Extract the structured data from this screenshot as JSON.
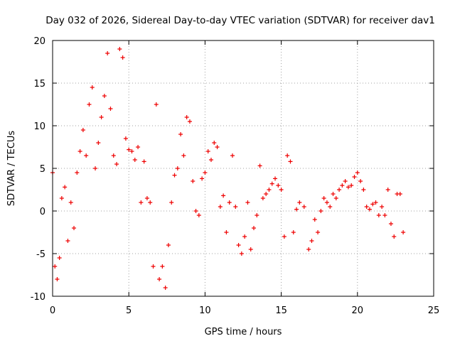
{
  "chart_data": {
    "type": "scatter",
    "title": "Day 032 of 2026, Sidereal Day-to-day VTEC variation (SDTVAR) for receiver dav1",
    "xlabel": "GPS time / hours",
    "ylabel": "SDTVAR / TECUs",
    "xlim": [
      0,
      25
    ],
    "ylim": [
      -10,
      20
    ],
    "x_ticks": [
      0,
      5,
      10,
      15,
      20,
      25
    ],
    "x_tick_labels": [
      "0",
      "5",
      "10",
      "15",
      "20",
      "25"
    ],
    "y_ticks": [
      -10,
      -5,
      0,
      5,
      10,
      15,
      20
    ],
    "y_tick_labels": [
      "-10",
      "-5",
      "0",
      "5",
      "10",
      "15",
      "20"
    ],
    "grid": true,
    "marker": "+",
    "color": "#ee0000",
    "series": [
      {
        "name": "dav1",
        "x": [
          0.0,
          0.15,
          0.3,
          0.45,
          0.6,
          0.8,
          1.0,
          1.2,
          1.4,
          1.6,
          1.8,
          2.0,
          2.2,
          2.4,
          2.6,
          2.8,
          3.0,
          3.2,
          3.4,
          3.6,
          3.8,
          4.0,
          4.2,
          4.4,
          4.6,
          4.8,
          5.0,
          5.2,
          5.4,
          5.6,
          5.8,
          6.0,
          6.2,
          6.4,
          6.6,
          6.8,
          7.0,
          7.2,
          7.4,
          7.6,
          7.8,
          8.0,
          8.2,
          8.4,
          8.6,
          8.8,
          9.0,
          9.2,
          9.4,
          9.6,
          9.8,
          10.0,
          10.2,
          10.4,
          10.6,
          10.8,
          11.0,
          11.2,
          11.4,
          11.6,
          11.8,
          12.0,
          12.2,
          12.4,
          12.6,
          12.8,
          13.0,
          13.2,
          13.4,
          13.6,
          13.8,
          14.0,
          14.2,
          14.4,
          14.6,
          14.8,
          15.0,
          15.2,
          15.4,
          15.6,
          15.8,
          16.0,
          16.2,
          16.5,
          16.8,
          17.0,
          17.2,
          17.4,
          17.6,
          17.8,
          18.0,
          18.2,
          18.4,
          18.6,
          18.8,
          19.0,
          19.2,
          19.4,
          19.6,
          19.8,
          20.0,
          20.2,
          20.4,
          20.6,
          20.8,
          21.0,
          21.2,
          21.4,
          21.6,
          21.8,
          22.0,
          22.2,
          22.4,
          22.6,
          22.8,
          23.0
        ],
        "y": [
          4.5,
          -6.5,
          -8.0,
          -5.5,
          1.5,
          2.8,
          -3.5,
          1.0,
          -2.0,
          4.5,
          7.0,
          9.5,
          6.5,
          12.5,
          14.5,
          5.0,
          8.0,
          11.0,
          13.5,
          18.5,
          12.0,
          6.5,
          5.5,
          19.0,
          18.0,
          8.5,
          7.2,
          7.0,
          6.0,
          7.5,
          1.0,
          5.8,
          1.5,
          1.0,
          -6.5,
          12.5,
          -8.0,
          -6.5,
          -9.0,
          -4.0,
          1.0,
          4.2,
          5.0,
          9.0,
          6.5,
          11.0,
          10.5,
          3.5,
          0.0,
          -0.5,
          3.8,
          4.5,
          7.0,
          6.0,
          8.0,
          7.5,
          0.5,
          1.8,
          -2.5,
          1.0,
          6.5,
          0.5,
          -4.0,
          -5.0,
          -3.0,
          1.0,
          -4.5,
          -2.0,
          -0.5,
          5.3,
          1.5,
          2.0,
          2.5,
          3.2,
          3.8,
          3.0,
          2.5,
          -3.0,
          6.5,
          5.8,
          -2.5,
          0.2,
          1.0,
          0.5,
          -4.5,
          -3.5,
          -1.0,
          -2.5,
          0.0,
          1.5,
          1.0,
          0.5,
          2.0,
          1.5,
          2.5,
          3.0,
          3.5,
          2.8,
          3.0,
          4.0,
          4.5,
          3.5,
          2.5,
          0.5,
          0.2,
          0.8,
          1.0,
          -0.5,
          0.5,
          -0.5,
          2.5,
          -1.5,
          -3.0,
          2.0,
          2.0,
          -2.5
        ]
      }
    ]
  }
}
